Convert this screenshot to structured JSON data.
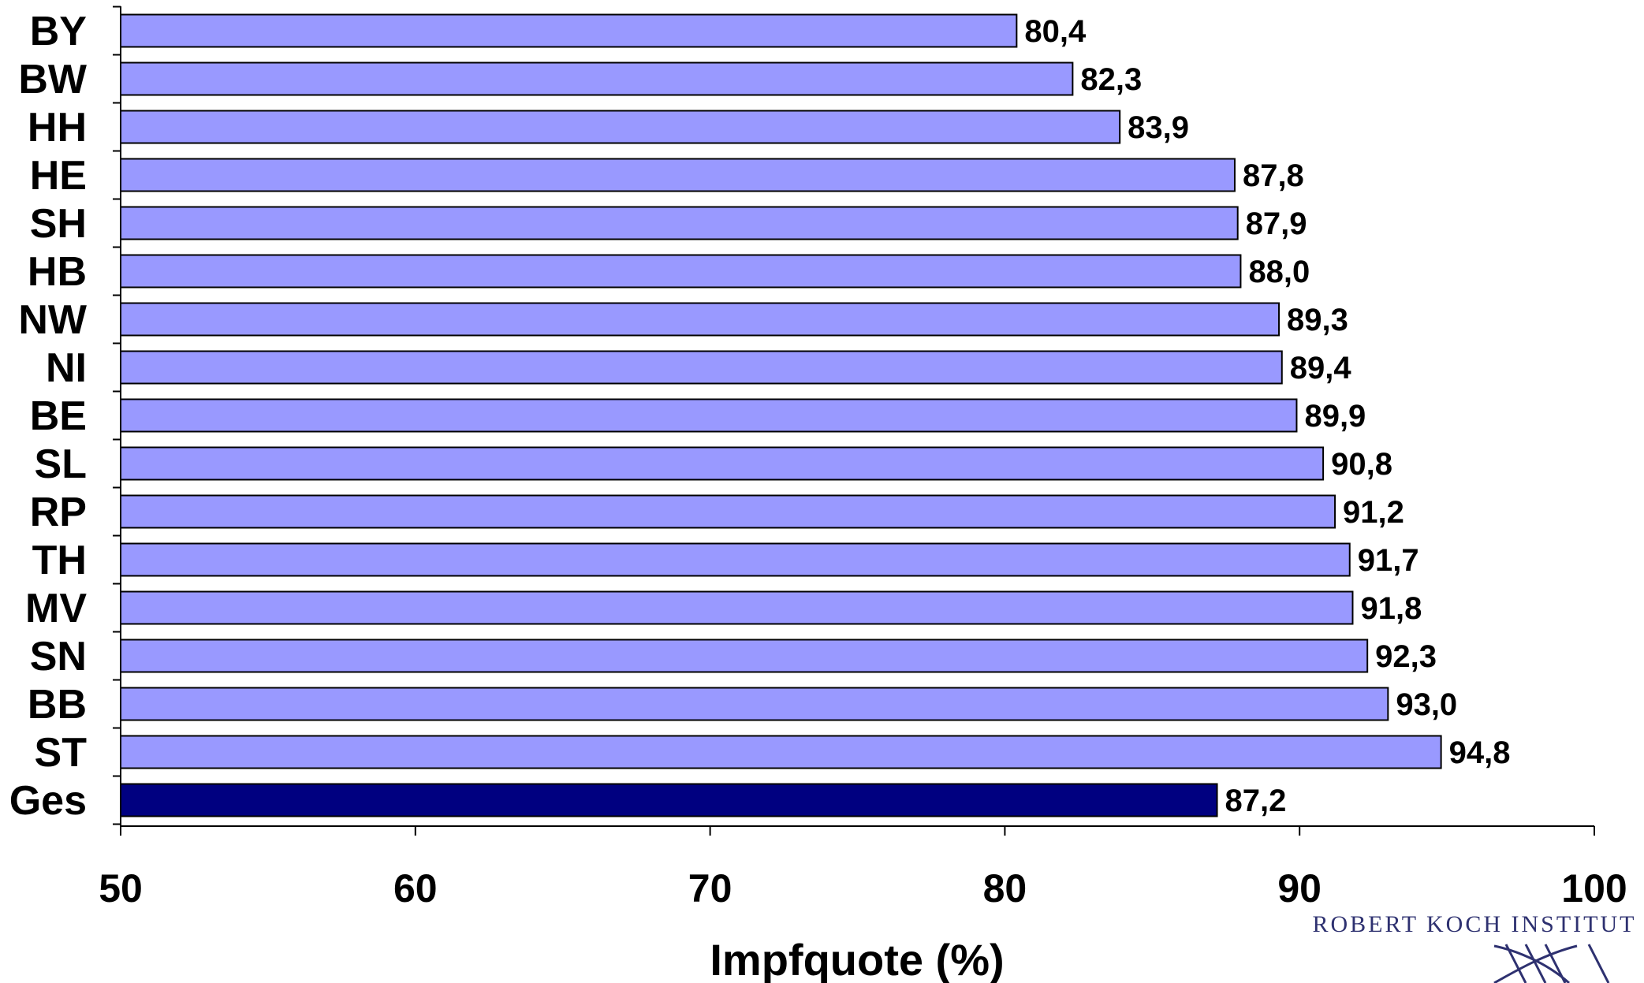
{
  "chart_data": {
    "type": "bar",
    "orientation": "horizontal",
    "categories": [
      "BY",
      "BW",
      "HH",
      "HE",
      "SH",
      "HB",
      "NW",
      "NI",
      "BE",
      "SL",
      "RP",
      "TH",
      "MV",
      "SN",
      "BB",
      "ST",
      "Ges"
    ],
    "values": [
      80.4,
      82.3,
      83.9,
      87.8,
      87.9,
      88.0,
      89.3,
      89.4,
      89.9,
      90.8,
      91.2,
      91.7,
      91.8,
      92.3,
      93.0,
      94.8,
      87.2
    ],
    "value_labels": [
      "80,4",
      "82,3",
      "83,9",
      "87,8",
      "87,9",
      "88,0",
      "89,3",
      "89,4",
      "89,9",
      "90,8",
      "91,2",
      "91,7",
      "91,8",
      "92,3",
      "93,0",
      "94,8",
      "87,2"
    ],
    "highlight": "Ges",
    "colors": {
      "bar": "#9999ff",
      "highlight": "#000080",
      "outline": "#000000"
    },
    "xlim": [
      50,
      100
    ],
    "xticks": [
      50,
      60,
      70,
      80,
      90,
      100
    ],
    "xlabel": "Impfquote (%)",
    "ylabel": "",
    "title": "",
    "grid": false,
    "legend": "none"
  },
  "logo": {
    "text": "ROBERT KOCH INSTITUT"
  }
}
